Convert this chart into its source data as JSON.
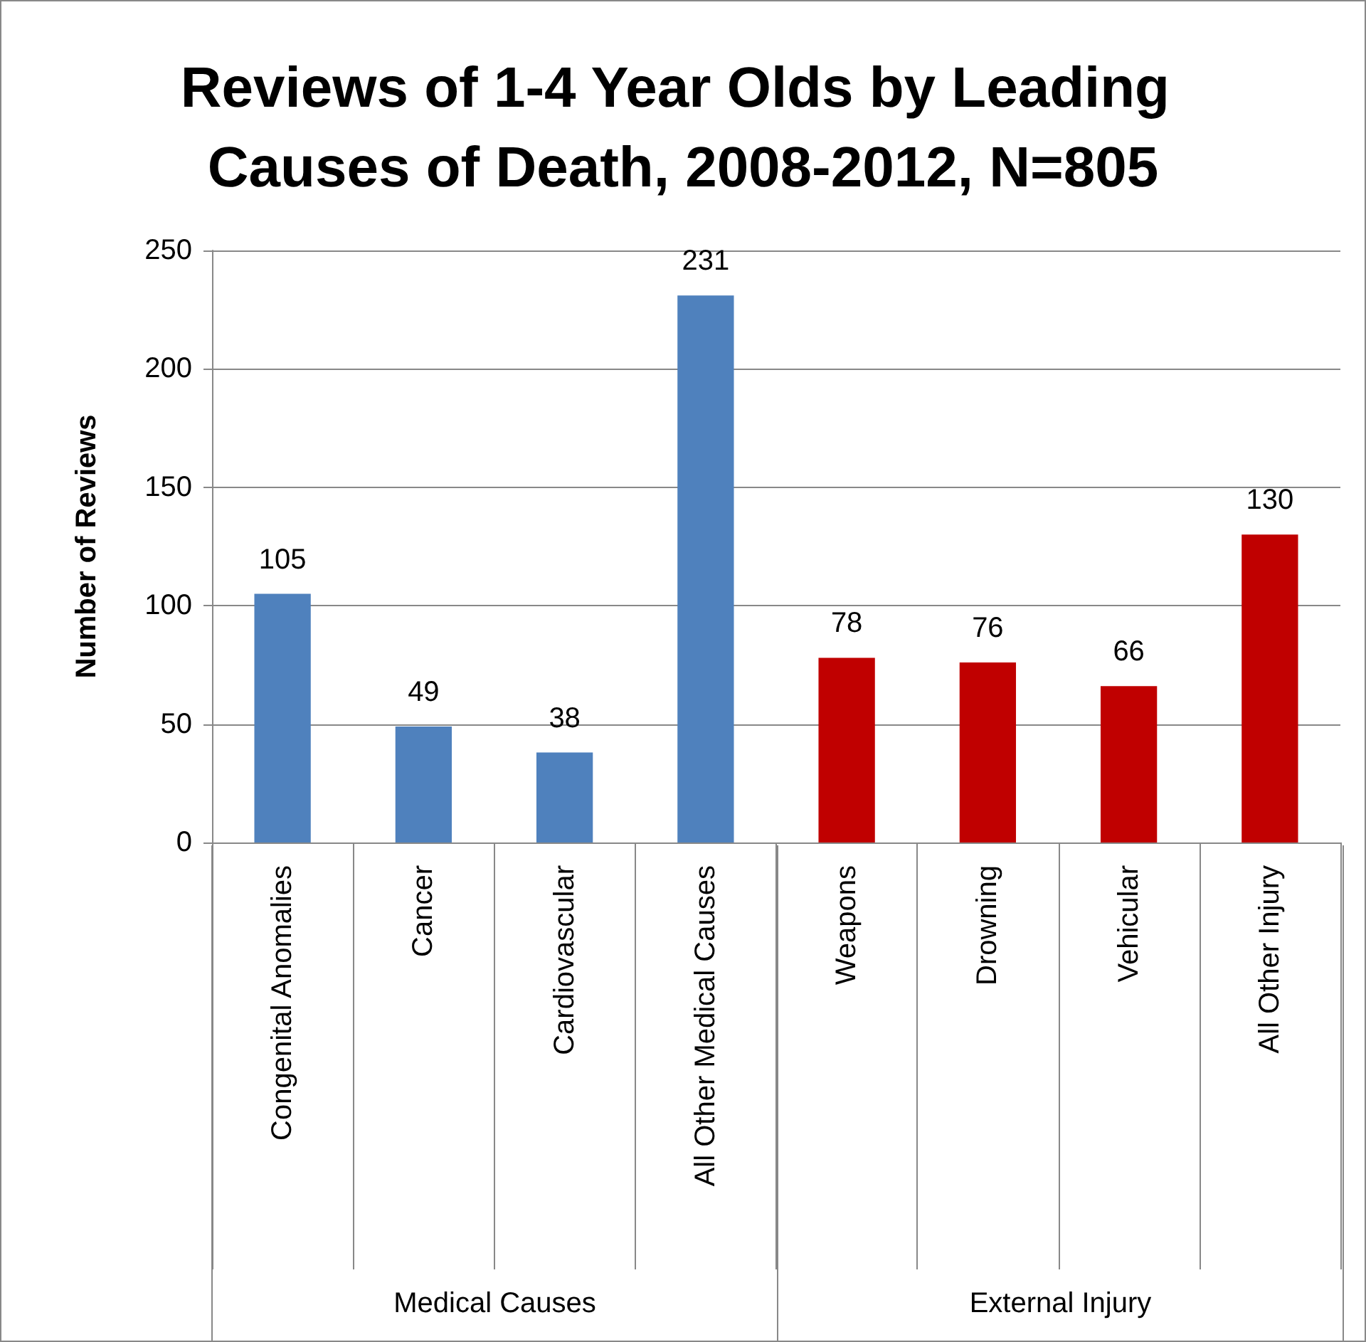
{
  "chart_data": {
    "type": "bar",
    "title": "Reviews of 1-4 Year Olds by Leading Causes of Death, 2008-2012, N=805",
    "ylabel": "Number of Reviews",
    "categories": [
      "Congenital Anomalies",
      "Cancer",
      "Cardiovascular",
      "All Other Medical Causes",
      "Weapons",
      "Drowning",
      "Vehicular",
      "All Other Injury"
    ],
    "values": [
      105,
      49,
      38,
      231,
      78,
      76,
      66,
      130
    ],
    "colors": [
      "#4f81bd",
      "#4f81bd",
      "#4f81bd",
      "#4f81bd",
      "#c00000",
      "#c00000",
      "#c00000",
      "#c00000"
    ],
    "annotations": [
      "Medical Causes",
      "External Injury"
    ],
    "ylim": [
      0,
      250
    ],
    "yticks": [
      0,
      50,
      100,
      150,
      200,
      250
    ],
    "grid": "y",
    "data_labels": true
  }
}
